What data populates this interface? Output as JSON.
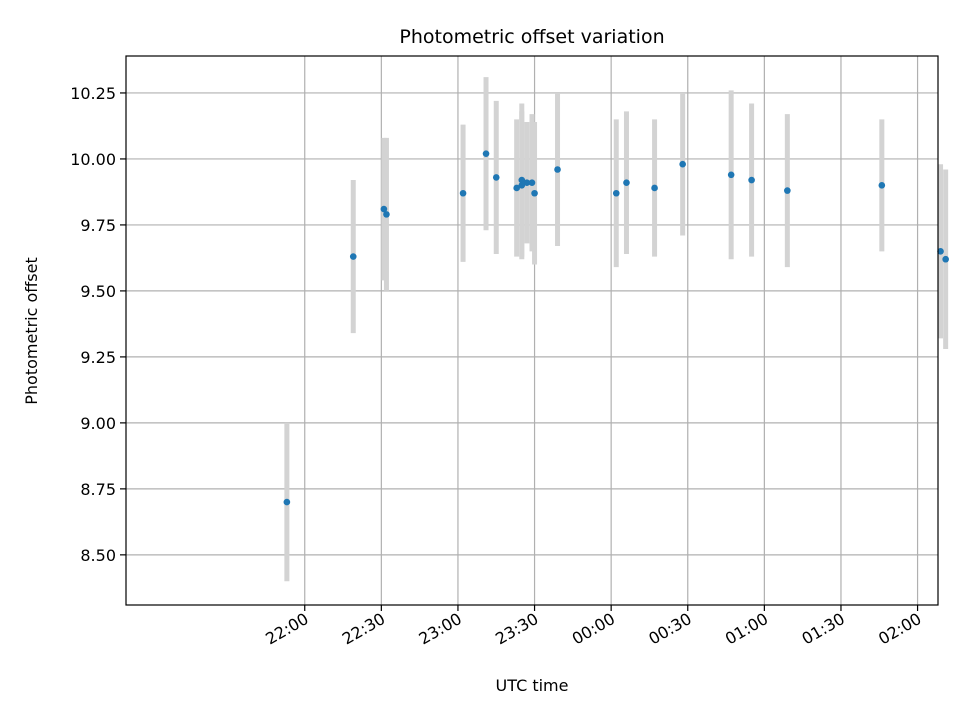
{
  "chart_data": {
    "type": "scatter",
    "title": "Photometric offset variation",
    "xlabel": "UTC time",
    "ylabel": "Photometric offset",
    "x_axis": {
      "kind": "time",
      "range_minutes": [
        -70,
        248
      ],
      "tick_minutes": [
        0,
        30,
        60,
        90,
        120,
        150,
        180,
        210,
        240
      ],
      "tick_labels": [
        "22:00",
        "22:30",
        "23:00",
        "23:30",
        "00:00",
        "00:30",
        "01:00",
        "01:30",
        "02:00"
      ]
    },
    "y_axis": {
      "range": [
        8.31,
        10.39
      ],
      "ticks": [
        8.5,
        8.75,
        9.0,
        9.25,
        9.5,
        9.75,
        10.0,
        10.25
      ],
      "tick_labels": [
        "8.50",
        "8.75",
        "9.00",
        "9.25",
        "9.50",
        "9.75",
        "10.00",
        "10.25"
      ]
    },
    "grid": true,
    "marker_color": "#1f77b4",
    "errorbar_color": "#d3d3d3",
    "points": [
      {
        "time": "21:53",
        "y": 8.7,
        "yerr": 0.3
      },
      {
        "time": "22:19",
        "y": 9.63,
        "yerr": 0.29
      },
      {
        "time": "22:31",
        "y": 9.81,
        "yerr": 0.27
      },
      {
        "time": "22:32",
        "y": 9.79,
        "yerr": 0.29
      },
      {
        "time": "23:02",
        "y": 9.87,
        "yerr": 0.26
      },
      {
        "time": "23:11",
        "y": 10.02,
        "yerr": 0.29
      },
      {
        "time": "23:15",
        "y": 9.93,
        "yerr": 0.29
      },
      {
        "time": "23:23",
        "y": 9.89,
        "yerr": 0.26
      },
      {
        "time": "23:25",
        "y": 9.92,
        "yerr": 0.29
      },
      {
        "time": "23:25",
        "y": 9.9,
        "yerr": 0.28
      },
      {
        "time": "23:27",
        "y": 9.91,
        "yerr": 0.23
      },
      {
        "time": "23:29",
        "y": 9.91,
        "yerr": 0.26
      },
      {
        "time": "23:30",
        "y": 9.87,
        "yerr": 0.27
      },
      {
        "time": "23:39",
        "y": 9.96,
        "yerr": 0.29
      },
      {
        "time": "00:02",
        "y": 9.87,
        "yerr": 0.28
      },
      {
        "time": "00:06",
        "y": 9.91,
        "yerr": 0.27
      },
      {
        "time": "00:17",
        "y": 9.89,
        "yerr": 0.26
      },
      {
        "time": "00:28",
        "y": 9.98,
        "yerr": 0.27
      },
      {
        "time": "00:47",
        "y": 9.94,
        "yerr": 0.32
      },
      {
        "time": "00:55",
        "y": 9.92,
        "yerr": 0.29
      },
      {
        "time": "01:09",
        "y": 9.88,
        "yerr": 0.29
      },
      {
        "time": "01:46",
        "y": 9.9,
        "yerr": 0.25
      },
      {
        "time": "02:09",
        "y": 9.65,
        "yerr": 0.33
      },
      {
        "time": "02:11",
        "y": 9.62,
        "yerr": 0.34
      }
    ]
  }
}
